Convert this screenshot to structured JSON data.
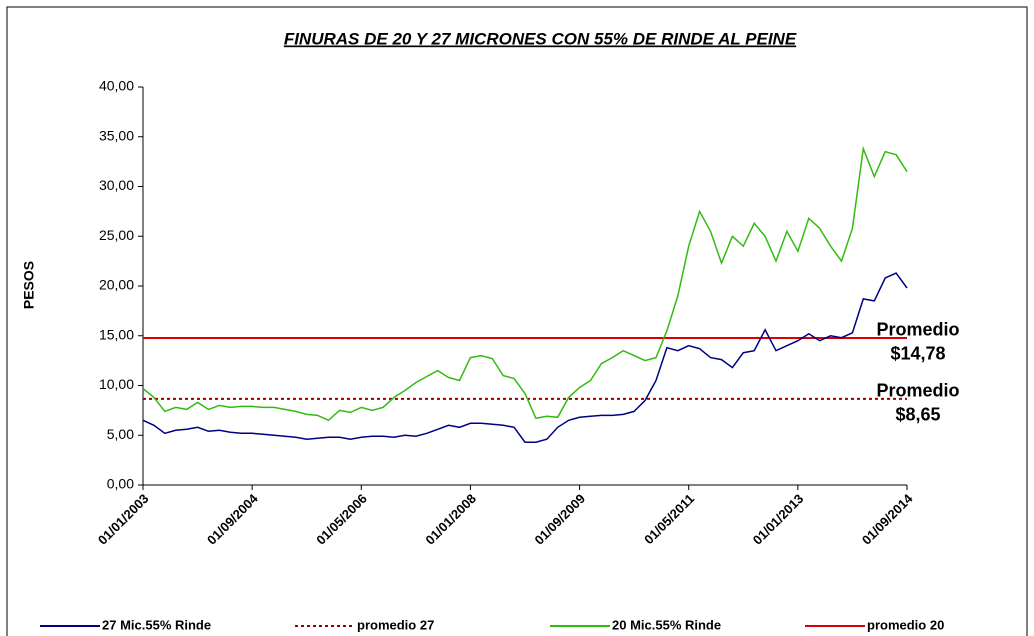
{
  "chart_data": {
    "type": "line",
    "title": "FINURAS DE 20 Y 27 MICRONES CON 55% DE RINDE AL PEINE",
    "y_label": "PESOS",
    "categories": [
      "01/01/2003",
      null,
      null,
      null,
      null,
      null,
      null,
      null,
      null,
      null,
      "01/09/2004",
      null,
      null,
      null,
      null,
      null,
      null,
      null,
      null,
      null,
      "01/05/2006",
      null,
      null,
      null,
      null,
      null,
      null,
      null,
      null,
      null,
      "01/01/2008",
      null,
      null,
      null,
      null,
      null,
      null,
      null,
      null,
      null,
      "01/09/2009",
      null,
      null,
      null,
      null,
      null,
      null,
      null,
      null,
      null,
      "01/05/2011",
      null,
      null,
      null,
      null,
      null,
      null,
      null,
      null,
      null,
      "01/01/2013",
      null,
      null,
      null,
      null,
      null,
      null,
      null,
      null,
      null,
      "01/09/2014"
    ],
    "series": [
      {
        "name": "27 Mic.55% Rinde",
        "color": "#000080",
        "values": [
          6.5,
          6.0,
          5.2,
          5.5,
          5.6,
          5.8,
          5.4,
          5.5,
          5.3,
          5.2,
          5.2,
          5.1,
          5.0,
          4.9,
          4.8,
          4.6,
          4.7,
          4.8,
          4.8,
          4.6,
          4.8,
          4.9,
          4.9,
          4.8,
          5.0,
          4.9,
          5.2,
          5.6,
          6.0,
          5.8,
          6.2,
          6.2,
          6.1,
          6.0,
          5.8,
          4.3,
          4.3,
          4.6,
          5.8,
          6.5,
          6.8,
          6.9,
          7.0,
          7.0,
          7.1,
          7.4,
          8.5,
          10.5,
          13.8,
          13.5,
          14.0,
          13.7,
          12.8,
          12.6,
          11.8,
          13.3,
          13.5,
          15.6,
          13.5,
          14.0,
          14.5,
          15.2,
          14.5,
          15.0,
          14.8,
          15.3,
          18.7,
          18.5,
          20.8,
          21.3,
          19.8
        ]
      },
      {
        "name": "20 Mic.55% Rinde",
        "color": "#33bb11",
        "values": [
          9.7,
          8.8,
          7.4,
          7.8,
          7.6,
          8.3,
          7.6,
          8.0,
          7.8,
          7.9,
          7.9,
          7.8,
          7.8,
          7.6,
          7.4,
          7.1,
          7.0,
          6.5,
          7.5,
          7.3,
          7.8,
          7.5,
          7.8,
          8.8,
          9.5,
          10.3,
          10.9,
          11.5,
          10.8,
          10.5,
          12.8,
          13.0,
          12.7,
          11.0,
          10.7,
          9.2,
          6.7,
          6.9,
          6.8,
          8.8,
          9.8,
          10.5,
          12.2,
          12.8,
          13.5,
          13.0,
          12.5,
          12.8,
          15.5,
          19.0,
          24.0,
          27.5,
          25.5,
          22.3,
          25.0,
          24.0,
          26.3,
          25.0,
          22.5,
          25.5,
          23.5,
          26.8,
          25.8,
          24.0,
          22.5,
          25.8,
          33.8,
          31.0,
          33.5,
          33.2,
          31.5
        ]
      }
    ],
    "reference_lines": [
      {
        "name": "promedio 27",
        "value": 8.65,
        "color": "#990000",
        "style": "dotted",
        "annotation": [
          "Promedio",
          "$8,65"
        ]
      },
      {
        "name": "promedio 20",
        "value": 14.78,
        "color": "#dd0000",
        "style": "solid",
        "annotation": [
          "Promedio",
          "$14,78"
        ]
      }
    ],
    "ylim": [
      0,
      40
    ],
    "yticks": [
      {
        "value": 0,
        "label": "0,00"
      },
      {
        "value": 5,
        "label": "5,00"
      },
      {
        "value": 10,
        "label": "10,00"
      },
      {
        "value": 15,
        "label": "15,00"
      },
      {
        "value": 20,
        "label": "20,00"
      },
      {
        "value": 25,
        "label": "25,00"
      },
      {
        "value": 30,
        "label": "30,00"
      },
      {
        "value": 35,
        "label": "35,00"
      },
      {
        "value": 40,
        "label": "40,00"
      }
    ],
    "grid": false,
    "legend": "bottom"
  }
}
